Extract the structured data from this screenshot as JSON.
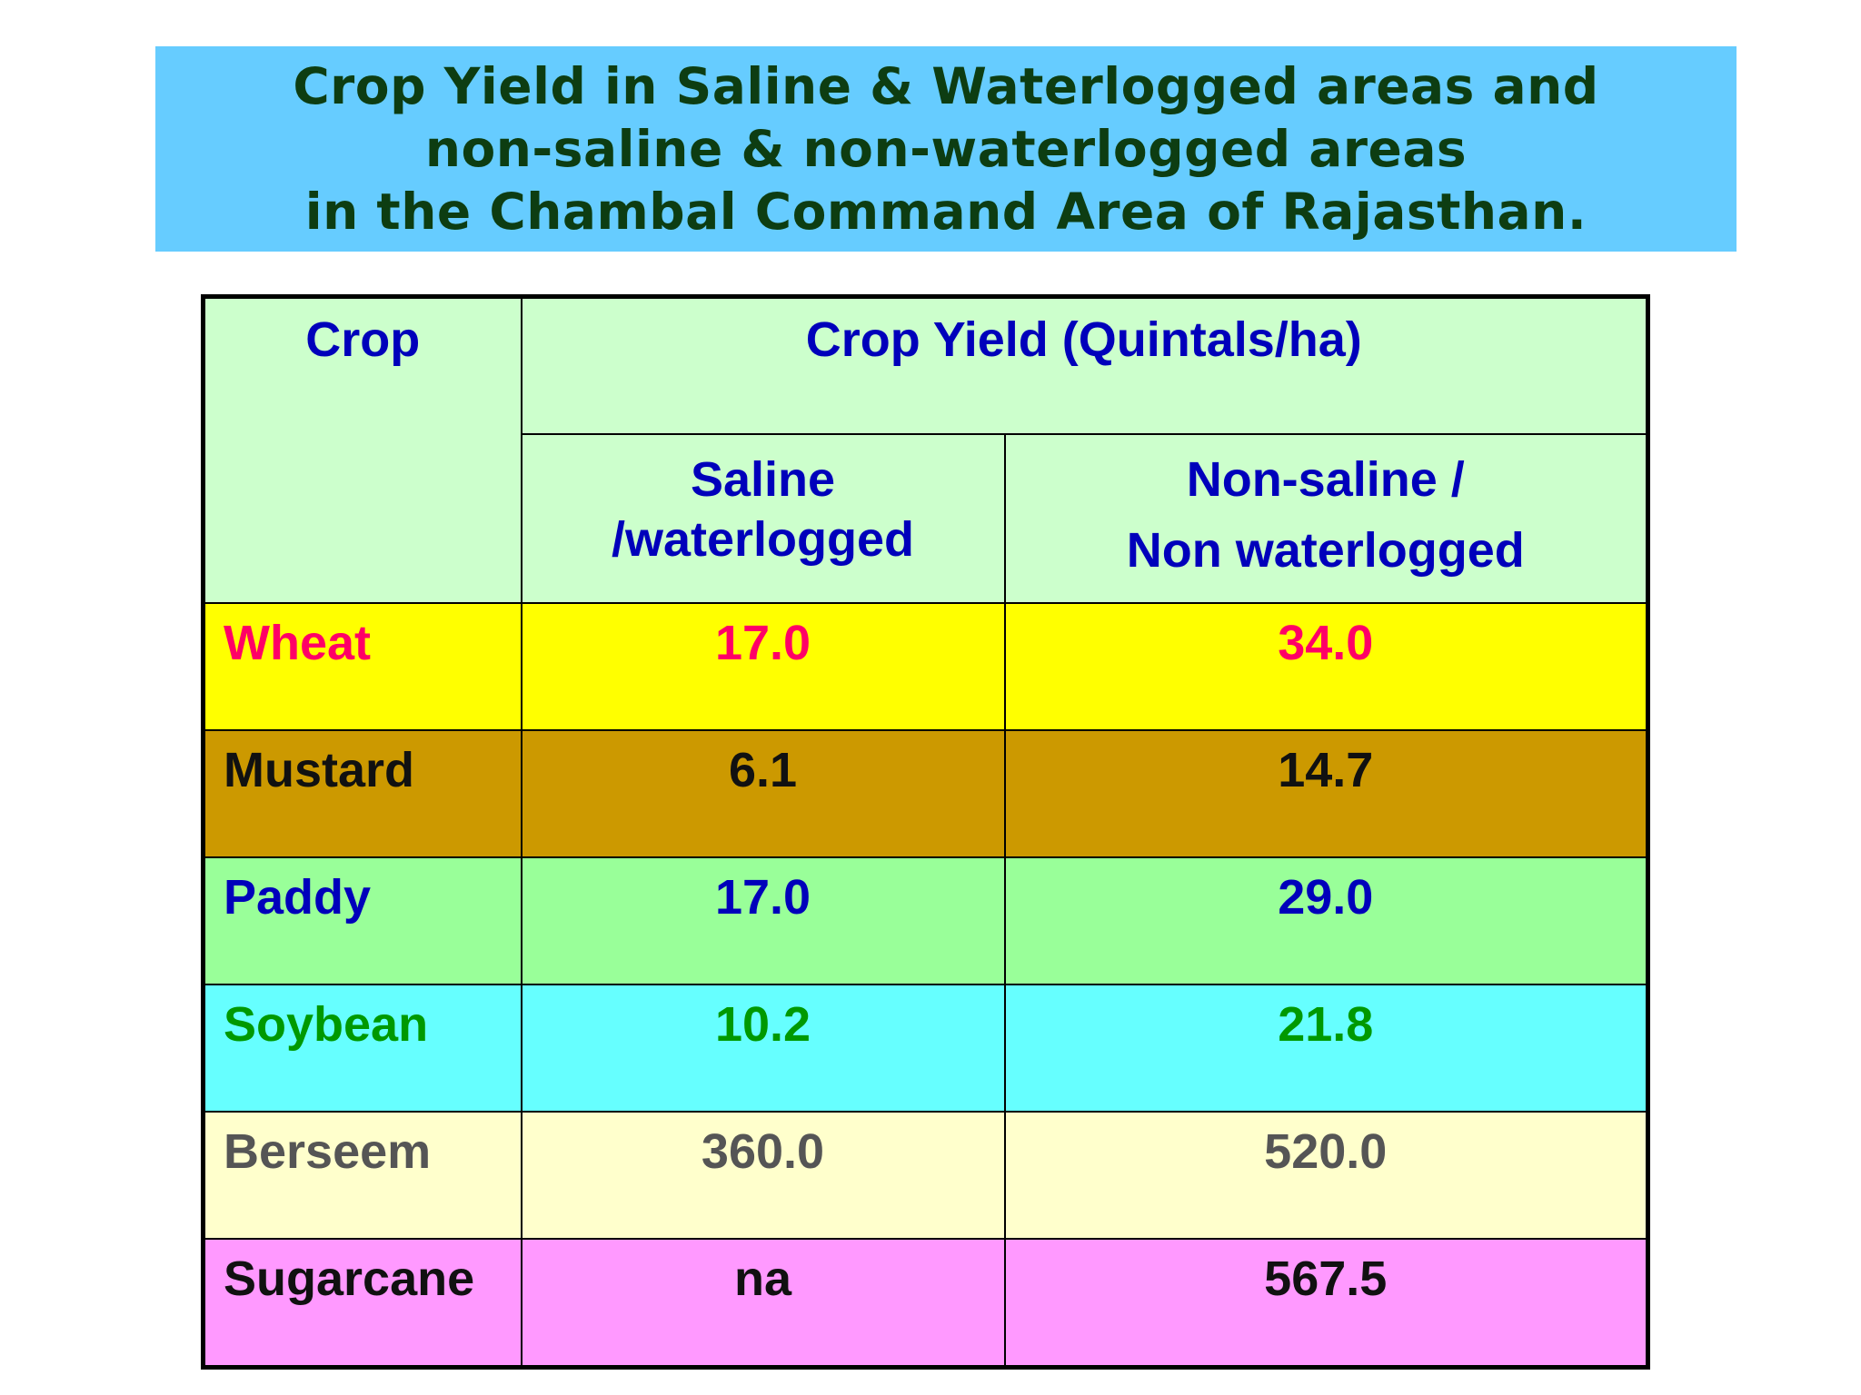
{
  "title": {
    "line1": "Crop Yield in Saline & Waterlogged areas and",
    "line2": "non-saline & non-waterlogged areas",
    "line3": "in the Chambal Command Area of Rajasthan."
  },
  "table": {
    "header": {
      "crop": "Crop",
      "yield": "Crop Yield (Quintals/ha)",
      "saline_line1": "Saline",
      "saline_line2": "/waterlogged",
      "nonsaline_line1": "Non-saline /",
      "nonsaline_line2": "Non waterlogged"
    },
    "rows": [
      {
        "crop": "Wheat",
        "saline": "17.0",
        "nonsaline": "34.0"
      },
      {
        "crop": "Mustard",
        "saline": "6.1",
        "nonsaline": "14.7"
      },
      {
        "crop": "Paddy",
        "saline": "17.0",
        "nonsaline": "29.0"
      },
      {
        "crop": "Soybean",
        "saline": "10.2",
        "nonsaline": "21.8"
      },
      {
        "crop": "Berseem",
        "saline": "360.0",
        "nonsaline": "520.0"
      },
      {
        "crop": "Sugarcane",
        "saline": "na",
        "nonsaline": "567.5"
      }
    ]
  },
  "colors": {
    "title_bg": "#66ccff",
    "title_text": "#0d3d12",
    "header_bg": "#ccffcc",
    "header_text": "#0000bb",
    "wheat_bg": "#ffff00",
    "mustard_bg": "#cc9900",
    "paddy_bg": "#99ff99",
    "soybean_bg": "#66ffff",
    "berseem_bg": "#ffffcc",
    "sugarcane_bg": "#ff99ff"
  }
}
